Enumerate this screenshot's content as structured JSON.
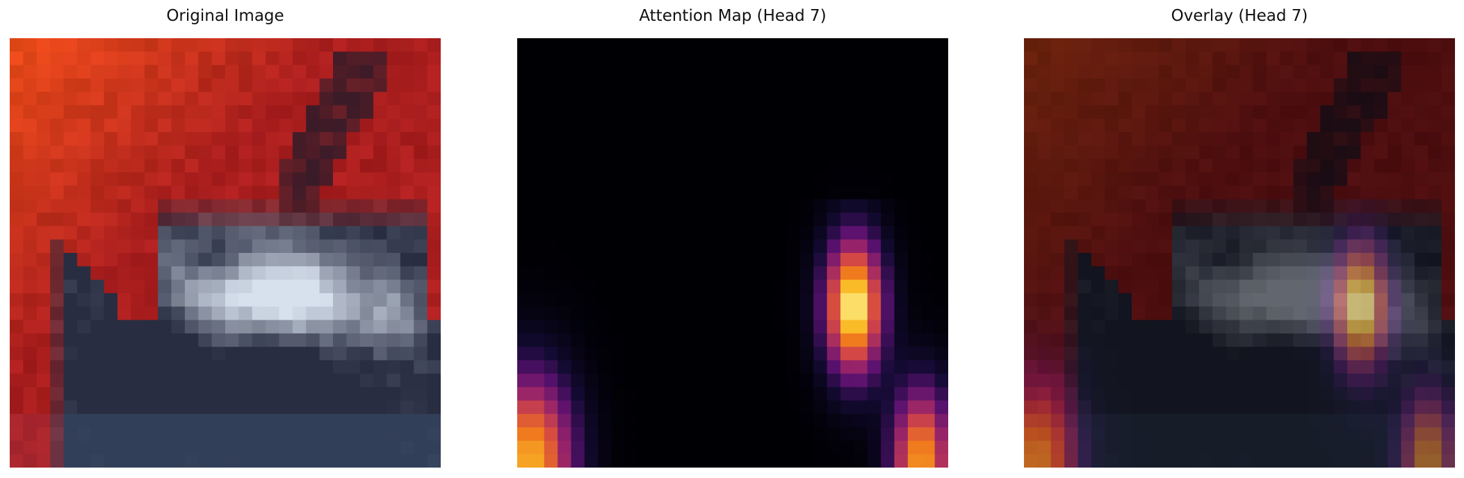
{
  "panels": [
    {
      "title": "Original Image"
    },
    {
      "title": "Attention Map (Head 7)"
    },
    {
      "title": "Overlay (Head 7)"
    }
  ],
  "colors": {
    "background_red": "#b8231f",
    "background_orange": "#e2461b",
    "car_white": "#d4dde8",
    "car_dark": "#1a1d2c",
    "attention_black": "#000004",
    "attention_purple": "#6a1a7a",
    "attention_orange": "#f07f1f",
    "attention_yellow": "#fbfba0"
  }
}
